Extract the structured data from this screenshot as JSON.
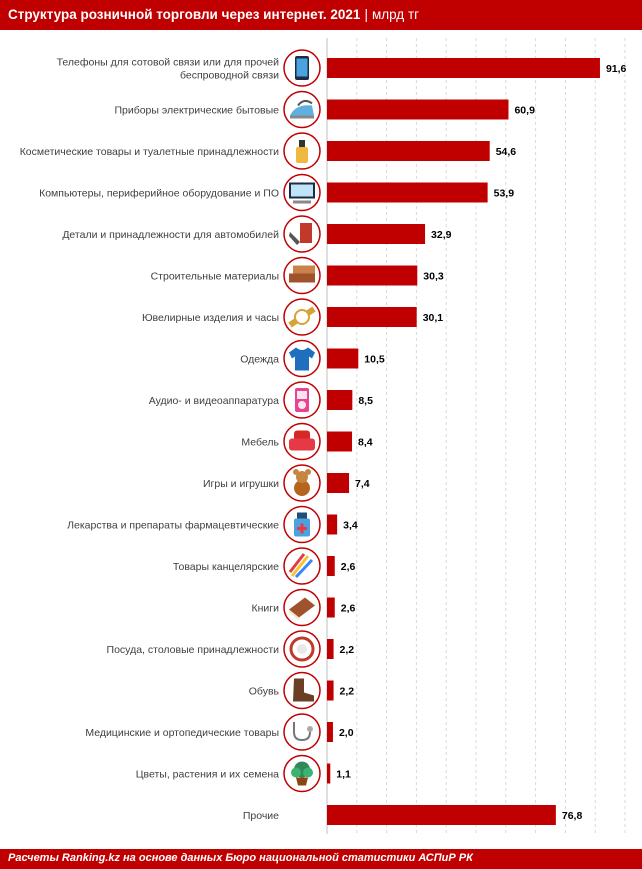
{
  "header": {
    "title": "Структура розничной торговли через интернет. 2021",
    "separator": "|",
    "unit": "млрд тг"
  },
  "footer": {
    "source": "Расчеты Ranking.kz на основе данных Бюро национальной статистики АСПиР РК"
  },
  "colors": {
    "accent": "#c00000",
    "bar": "#c00000",
    "icon_ring": "#c00000"
  },
  "chart_data": {
    "type": "bar",
    "orientation": "horizontal",
    "grid": true,
    "categories": [
      [
        "Телефоны для сотовой связи или для прочей",
        "беспроводной связи"
      ],
      [
        "Приборы электрические бытовые"
      ],
      [
        "Косметические товары и туалетные принадлежности"
      ],
      [
        "Компьютеры, периферийное оборудование и ПО"
      ],
      [
        "Детали и принадлежности  для автомобилей"
      ],
      [
        "Строительные материалы"
      ],
      [
        "Ювелирные изделия  и часы"
      ],
      [
        "Одежда"
      ],
      [
        "Аудио- и видеоаппаратура"
      ],
      [
        "Мебель"
      ],
      [
        "Игры и игрушки"
      ],
      [
        "Лекарства и препараты фармацевтические"
      ],
      [
        "Товары канцелярские"
      ],
      [
        "Книги"
      ],
      [
        "Посуда, столовые принадлежности"
      ],
      [
        "Обувь"
      ],
      [
        "Медицинские и ортопедические товары"
      ],
      [
        "Цветы, растения и их семена"
      ],
      [
        "Прочие"
      ]
    ],
    "values": [
      91.6,
      60.9,
      54.6,
      53.9,
      32.9,
      30.3,
      30.1,
      10.5,
      8.5,
      8.4,
      7.4,
      3.4,
      2.6,
      2.6,
      2.2,
      2.2,
      2.0,
      1.1,
      76.8
    ],
    "value_labels": [
      "91,6",
      "60,9",
      "54,6",
      "53,9",
      "32,9",
      "30,3",
      "30,1",
      "10,5",
      "8,5",
      "8,4",
      "7,4",
      "3,4",
      "2,6",
      "2,6",
      "2,2",
      "2,2",
      "2,0",
      "1,1",
      "76,8"
    ],
    "icons": [
      "phone-icon",
      "iron-icon",
      "cosmetics-bottle-icon",
      "computer-monitor-icon",
      "car-parts-icon",
      "bricks-icon",
      "watch-icon",
      "tshirt-icon",
      "audio-player-icon",
      "armchair-icon",
      "teddy-bear-icon",
      "medicine-bottle-icon",
      "pencils-icon",
      "book-icon",
      "dishes-icon",
      "boot-icon",
      "stethoscope-icon",
      "potted-plant-icon",
      ""
    ],
    "xlim": [
      0,
      100
    ]
  }
}
